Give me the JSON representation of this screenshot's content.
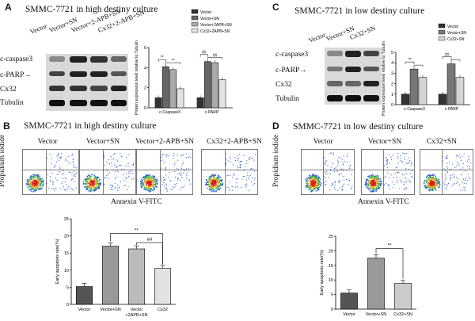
{
  "panelA": {
    "letter": "A",
    "title": "SMMC-7721 in high destiny culture",
    "lanes": [
      "Vector",
      "Vector+SN",
      "Vector+2-APB+SN",
      "Cx32+2-APB+SN"
    ],
    "bands": [
      "c-caspase3",
      "c-PARP→",
      "Cx32",
      "Tubulin"
    ],
    "chart_data": {
      "type": "bar",
      "categories": [
        "c-Caspase3",
        "c-PARP"
      ],
      "series": [
        {
          "name": "Vector",
          "values": [
            1.0,
            1.0
          ],
          "color": "#333333"
        },
        {
          "name": "Vector+SN",
          "values": [
            4.1,
            4.6
          ],
          "color": "#666666"
        },
        {
          "name": "Vector+2APB+SN",
          "values": [
            3.8,
            4.5
          ],
          "color": "#aaaaaa"
        },
        {
          "name": "Cx32+2APB+SN",
          "values": [
            1.9,
            2.8
          ],
          "color": "#e2e2e2"
        }
      ],
      "ylabel": "Protein expression level relative to Tubulin",
      "ylim": [
        0,
        6
      ],
      "yticks": [
        "0",
        "2",
        "4",
        "6"
      ],
      "sig": [
        "**",
        "**",
        "##",
        "##"
      ]
    }
  },
  "panelC": {
    "letter": "C",
    "title": "SMMC-7721 in low destiny culture",
    "lanes": [
      "Vector",
      "Vector+SN",
      "Cx32+SN"
    ],
    "bands": [
      "c-caspase3",
      "c-PARP→",
      "Cx32",
      "Tubulin"
    ],
    "chart_data": {
      "type": "bar",
      "categories": [
        "c-Caspase3",
        "c-PARP"
      ],
      "series": [
        {
          "name": "Vector",
          "values": [
            1.0,
            1.0
          ],
          "color": "#333333"
        },
        {
          "name": "Vector+SN",
          "values": [
            3.4,
            3.9
          ],
          "color": "#777777"
        },
        {
          "name": "Cx32+SN",
          "values": [
            2.6,
            2.6
          ],
          "color": "#d4d4d4"
        }
      ],
      "ylabel": "Protein expression level relative to Tubulin",
      "ylim": [
        0,
        5
      ],
      "yticks": [
        "0",
        "1",
        "2",
        "3",
        "4",
        "5"
      ],
      "sig": [
        "**",
        "##"
      ]
    }
  },
  "panelB": {
    "letter": "B",
    "title": "SMMC-7721 in high destiny culture",
    "flow_labels": [
      "Vector",
      "Vector+SN",
      "Vector+2-APB+SN",
      "Cx32+2-APB+SN"
    ],
    "ylabel": "Propidium iodide",
    "xlabel": "Annexin V-FITC",
    "chart_data": {
      "type": "bar",
      "categories": [
        "Vector",
        "Vector+SN",
        "Vector",
        "Cx32"
      ],
      "sublabel": "+2APB+SN",
      "values": [
        5.2,
        17.0,
        16.2,
        10.5
      ],
      "colors": [
        "#555555",
        "#999999",
        "#bbbbbb",
        "#e2e2e2"
      ],
      "ylabel": "Early apoptosis rate(%)",
      "ylim": [
        0,
        25
      ],
      "yticks": [
        "0",
        "5",
        "10",
        "15",
        "20",
        "25"
      ],
      "sig": [
        "**",
        "##"
      ]
    }
  },
  "panelD": {
    "letter": "D",
    "title": "SMMC-7721 in low destiny culture",
    "flow_labels": [
      "Vector",
      "Vector+SN",
      "Cx32+SN"
    ],
    "ylabel": "Propidium iodide",
    "xlabel": "Annexin V-FITC",
    "chart_data": {
      "type": "bar",
      "categories": [
        "Vector",
        "Vector+SN",
        "Cx32+SN"
      ],
      "values": [
        5.5,
        17.5,
        8.8
      ],
      "colors": [
        "#555555",
        "#999999",
        "#cccccc"
      ],
      "ylabel": "Early apoptosis rate(%)",
      "ylim": [
        0,
        25
      ],
      "yticks": [
        "0",
        "5",
        "10",
        "15",
        "20",
        "25"
      ],
      "sig": [
        "**"
      ]
    }
  }
}
